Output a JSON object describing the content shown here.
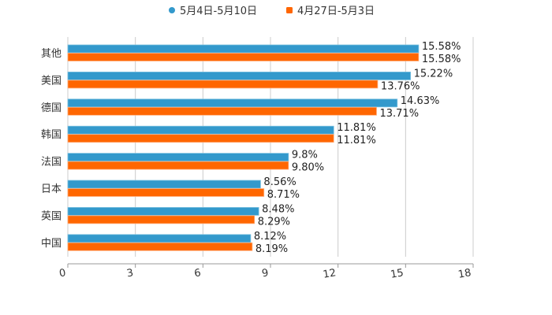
{
  "chart_data": {
    "type": "bar",
    "orientation": "horizontal",
    "categories": [
      "其他",
      "美国",
      "德国",
      "韩国",
      "法国",
      "日本",
      "英国",
      "中国"
    ],
    "series": [
      {
        "name": "5月4日-5月10日",
        "color": "#3399cc",
        "values": [
          15.58,
          15.22,
          14.63,
          11.81,
          9.8,
          8.56,
          8.48,
          8.12
        ],
        "labels": [
          "15.58%",
          "15.22%",
          "14.63%",
          "11.81%",
          "9.8%",
          "8.56%",
          "8.48%",
          "8.12%"
        ]
      },
      {
        "name": "4月27日-5月3日",
        "color": "#ff6600",
        "values": [
          15.58,
          13.76,
          13.71,
          11.81,
          9.8,
          8.71,
          8.29,
          8.19
        ],
        "labels": [
          "15.58%",
          "13.76%",
          "13.71%",
          "11.81%",
          "9.80%",
          "8.71%",
          "8.29%",
          "8.19%"
        ]
      }
    ],
    "xlim": [
      0,
      18
    ],
    "xticks": [
      "0",
      "3",
      "6",
      "9",
      "12",
      "15",
      "18"
    ],
    "grid": true,
    "legend_position": "top-center",
    "title": "",
    "xlabel": "",
    "ylabel": ""
  }
}
